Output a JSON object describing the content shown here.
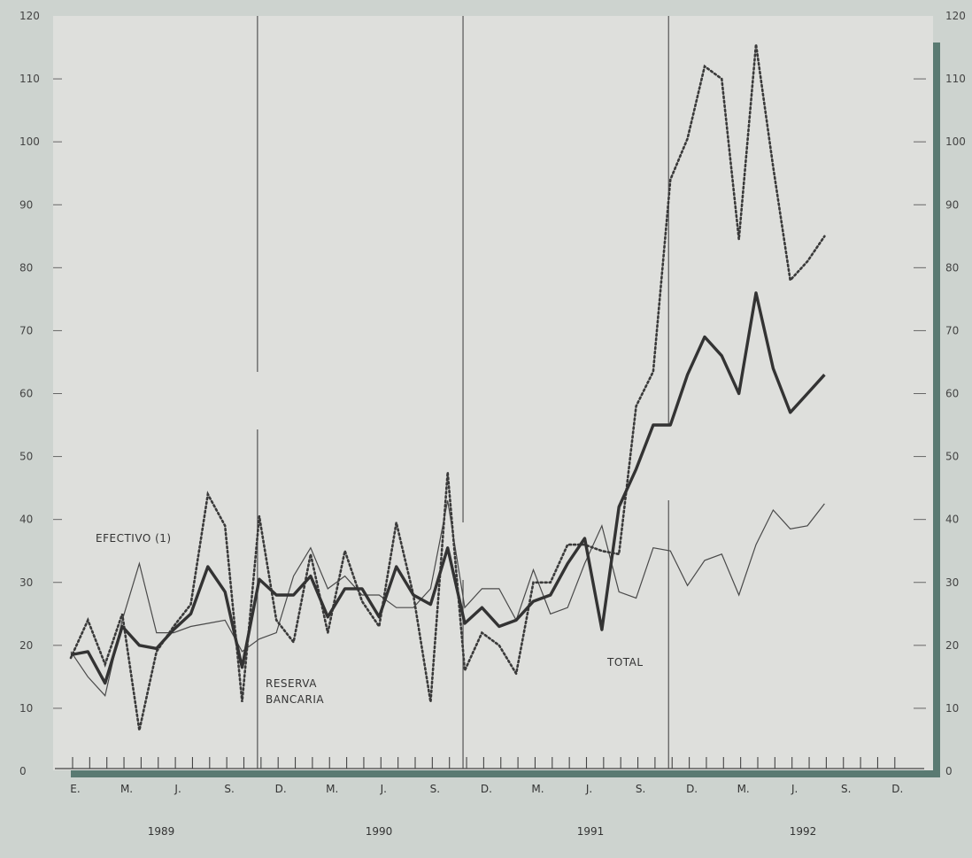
{
  "chart_data": {
    "type": "line",
    "ylim": [
      0,
      120
    ],
    "yticks": [
      0,
      10,
      20,
      30,
      40,
      50,
      60,
      70,
      80,
      90,
      100,
      110,
      120
    ],
    "month_ticks": [
      "E.",
      "M.",
      "J.",
      "S.",
      "D.",
      "M.",
      "J.",
      "S.",
      "D.",
      "M.",
      "J.",
      "S.",
      "D.",
      "M.",
      "J.",
      "S.",
      "D."
    ],
    "years": [
      "1989",
      "1990",
      "1991",
      "1992"
    ],
    "annotations": {
      "efectivo": "EFECTIVO (1)",
      "reserva_line1": "RESERVA",
      "reserva_line2": "BANCARIA",
      "total": "TOTAL"
    },
    "series": [
      {
        "key": "efectivo",
        "values": [
          19,
          15,
          12,
          24,
          33,
          22,
          22,
          23,
          23.5,
          24,
          19,
          21,
          22,
          31,
          35.5,
          29,
          31,
          28,
          28,
          26,
          26,
          29,
          43,
          26,
          29,
          29,
          24,
          32,
          25,
          26,
          33,
          39,
          28.5,
          27.5,
          35.5,
          35,
          29.5,
          33.5,
          34.5,
          28,
          36,
          41.5,
          38.5,
          39,
          42.5
        ]
      },
      {
        "key": "reserva",
        "values": [
          18,
          24,
          17,
          25,
          6.5,
          19,
          23,
          26.5,
          44,
          39,
          11,
          40.5,
          24,
          20.5,
          34.5,
          22,
          35,
          27,
          23,
          39.5,
          28,
          11,
          47.5,
          16,
          22,
          20,
          15.5,
          30,
          30,
          36,
          36,
          35,
          34.5,
          58,
          63.5,
          94,
          100.5,
          112,
          110,
          84.5,
          115.5,
          96,
          78,
          81,
          85
        ]
      },
      {
        "key": "total",
        "values": [
          18.5,
          19,
          14,
          23,
          20,
          19.5,
          22.5,
          25,
          32.5,
          28.5,
          16.5,
          30.5,
          28,
          28,
          31,
          24.5,
          29,
          29,
          24.5,
          32.5,
          28,
          26.5,
          35.5,
          23.5,
          26,
          23,
          24,
          27,
          28,
          33,
          37,
          22.5,
          42,
          48,
          55,
          55,
          63,
          69,
          66,
          60,
          76,
          64,
          57,
          60,
          63
        ]
      }
    ]
  }
}
